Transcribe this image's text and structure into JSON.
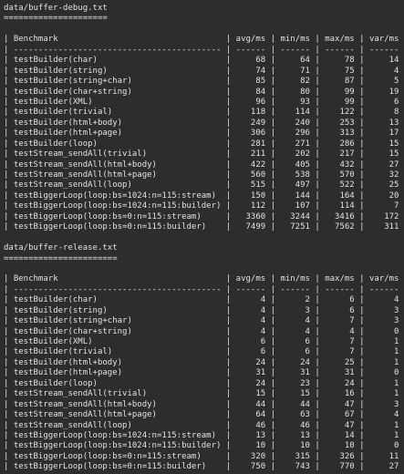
{
  "sections": [
    {
      "title": "data/buffer-debug.txt",
      "header": [
        "Benchmark",
        "avg/ms",
        "min/ms",
        "max/ms",
        "var/ms"
      ],
      "rows": [
        [
          "testBuilder(char)",
          68,
          64,
          78,
          14
        ],
        [
          "testBuilder(string)",
          74,
          71,
          75,
          4
        ],
        [
          "testBuilder(string+char)",
          85,
          82,
          87,
          5
        ],
        [
          "testBuilder(char+string)",
          84,
          80,
          99,
          19
        ],
        [
          "testBuilder(XML)",
          96,
          93,
          99,
          6
        ],
        [
          "testBuilder(trivial)",
          118,
          114,
          122,
          8
        ],
        [
          "testBuilder(html+body)",
          249,
          240,
          253,
          13
        ],
        [
          "testBuilder(html+page)",
          306,
          296,
          313,
          17
        ],
        [
          "testBuilder(loop)",
          281,
          271,
          286,
          15
        ],
        [
          "testStream_sendAll(trivial)",
          211,
          202,
          217,
          15
        ],
        [
          "testStream_sendAll(html+body)",
          422,
          405,
          432,
          27
        ],
        [
          "testStream_sendAll(html+page)",
          560,
          538,
          570,
          32
        ],
        [
          "testStream_sendAll(loop)",
          515,
          497,
          522,
          25
        ],
        [
          "testBiggerLoop(loop:bs=1024:n=115:stream)",
          150,
          144,
          164,
          20
        ],
        [
          "testBiggerLoop(loop:bs=1024:n=115:builder)",
          112,
          107,
          114,
          7
        ],
        [
          "testBiggerLoop(loop:bs=0:n=115:stream)",
          3360,
          3244,
          3416,
          172
        ],
        [
          "testBiggerLoop(loop:bs=0:n=115:builder)",
          7499,
          7251,
          7562,
          311
        ]
      ]
    },
    {
      "title": "data/buffer-release.txt",
      "header": [
        "Benchmark",
        "avg/ms",
        "min/ms",
        "max/ms",
        "var/ms"
      ],
      "rows": [
        [
          "testBuilder(char)",
          4,
          2,
          6,
          4
        ],
        [
          "testBuilder(string)",
          4,
          3,
          6,
          3
        ],
        [
          "testBuilder(string+char)",
          4,
          4,
          7,
          3
        ],
        [
          "testBuilder(char+string)",
          4,
          4,
          4,
          0
        ],
        [
          "testBuilder(XML)",
          6,
          6,
          7,
          1
        ],
        [
          "testBuilder(trivial)",
          6,
          6,
          7,
          1
        ],
        [
          "testBuilder(html+body)",
          24,
          24,
          25,
          1
        ],
        [
          "testBuilder(html+page)",
          31,
          31,
          31,
          0
        ],
        [
          "testBuilder(loop)",
          24,
          23,
          24,
          1
        ],
        [
          "testStream_sendAll(trivial)",
          15,
          15,
          16,
          1
        ],
        [
          "testStream_sendAll(html+body)",
          44,
          44,
          47,
          3
        ],
        [
          "testStream_sendAll(html+page)",
          64,
          63,
          67,
          4
        ],
        [
          "testStream_sendAll(loop)",
          46,
          46,
          47,
          1
        ],
        [
          "testBiggerLoop(loop:bs=1024:n=115:stream)",
          13,
          13,
          14,
          1
        ],
        [
          "testBiggerLoop(loop:bs=1024:n=115:builder)",
          10,
          10,
          10,
          0
        ],
        [
          "testBiggerLoop(loop:bs=0:n=115:stream)",
          320,
          315,
          326,
          11
        ],
        [
          "testBiggerLoop(loop:bs=0:n=115:builder)",
          750,
          743,
          770,
          27
        ]
      ]
    }
  ]
}
